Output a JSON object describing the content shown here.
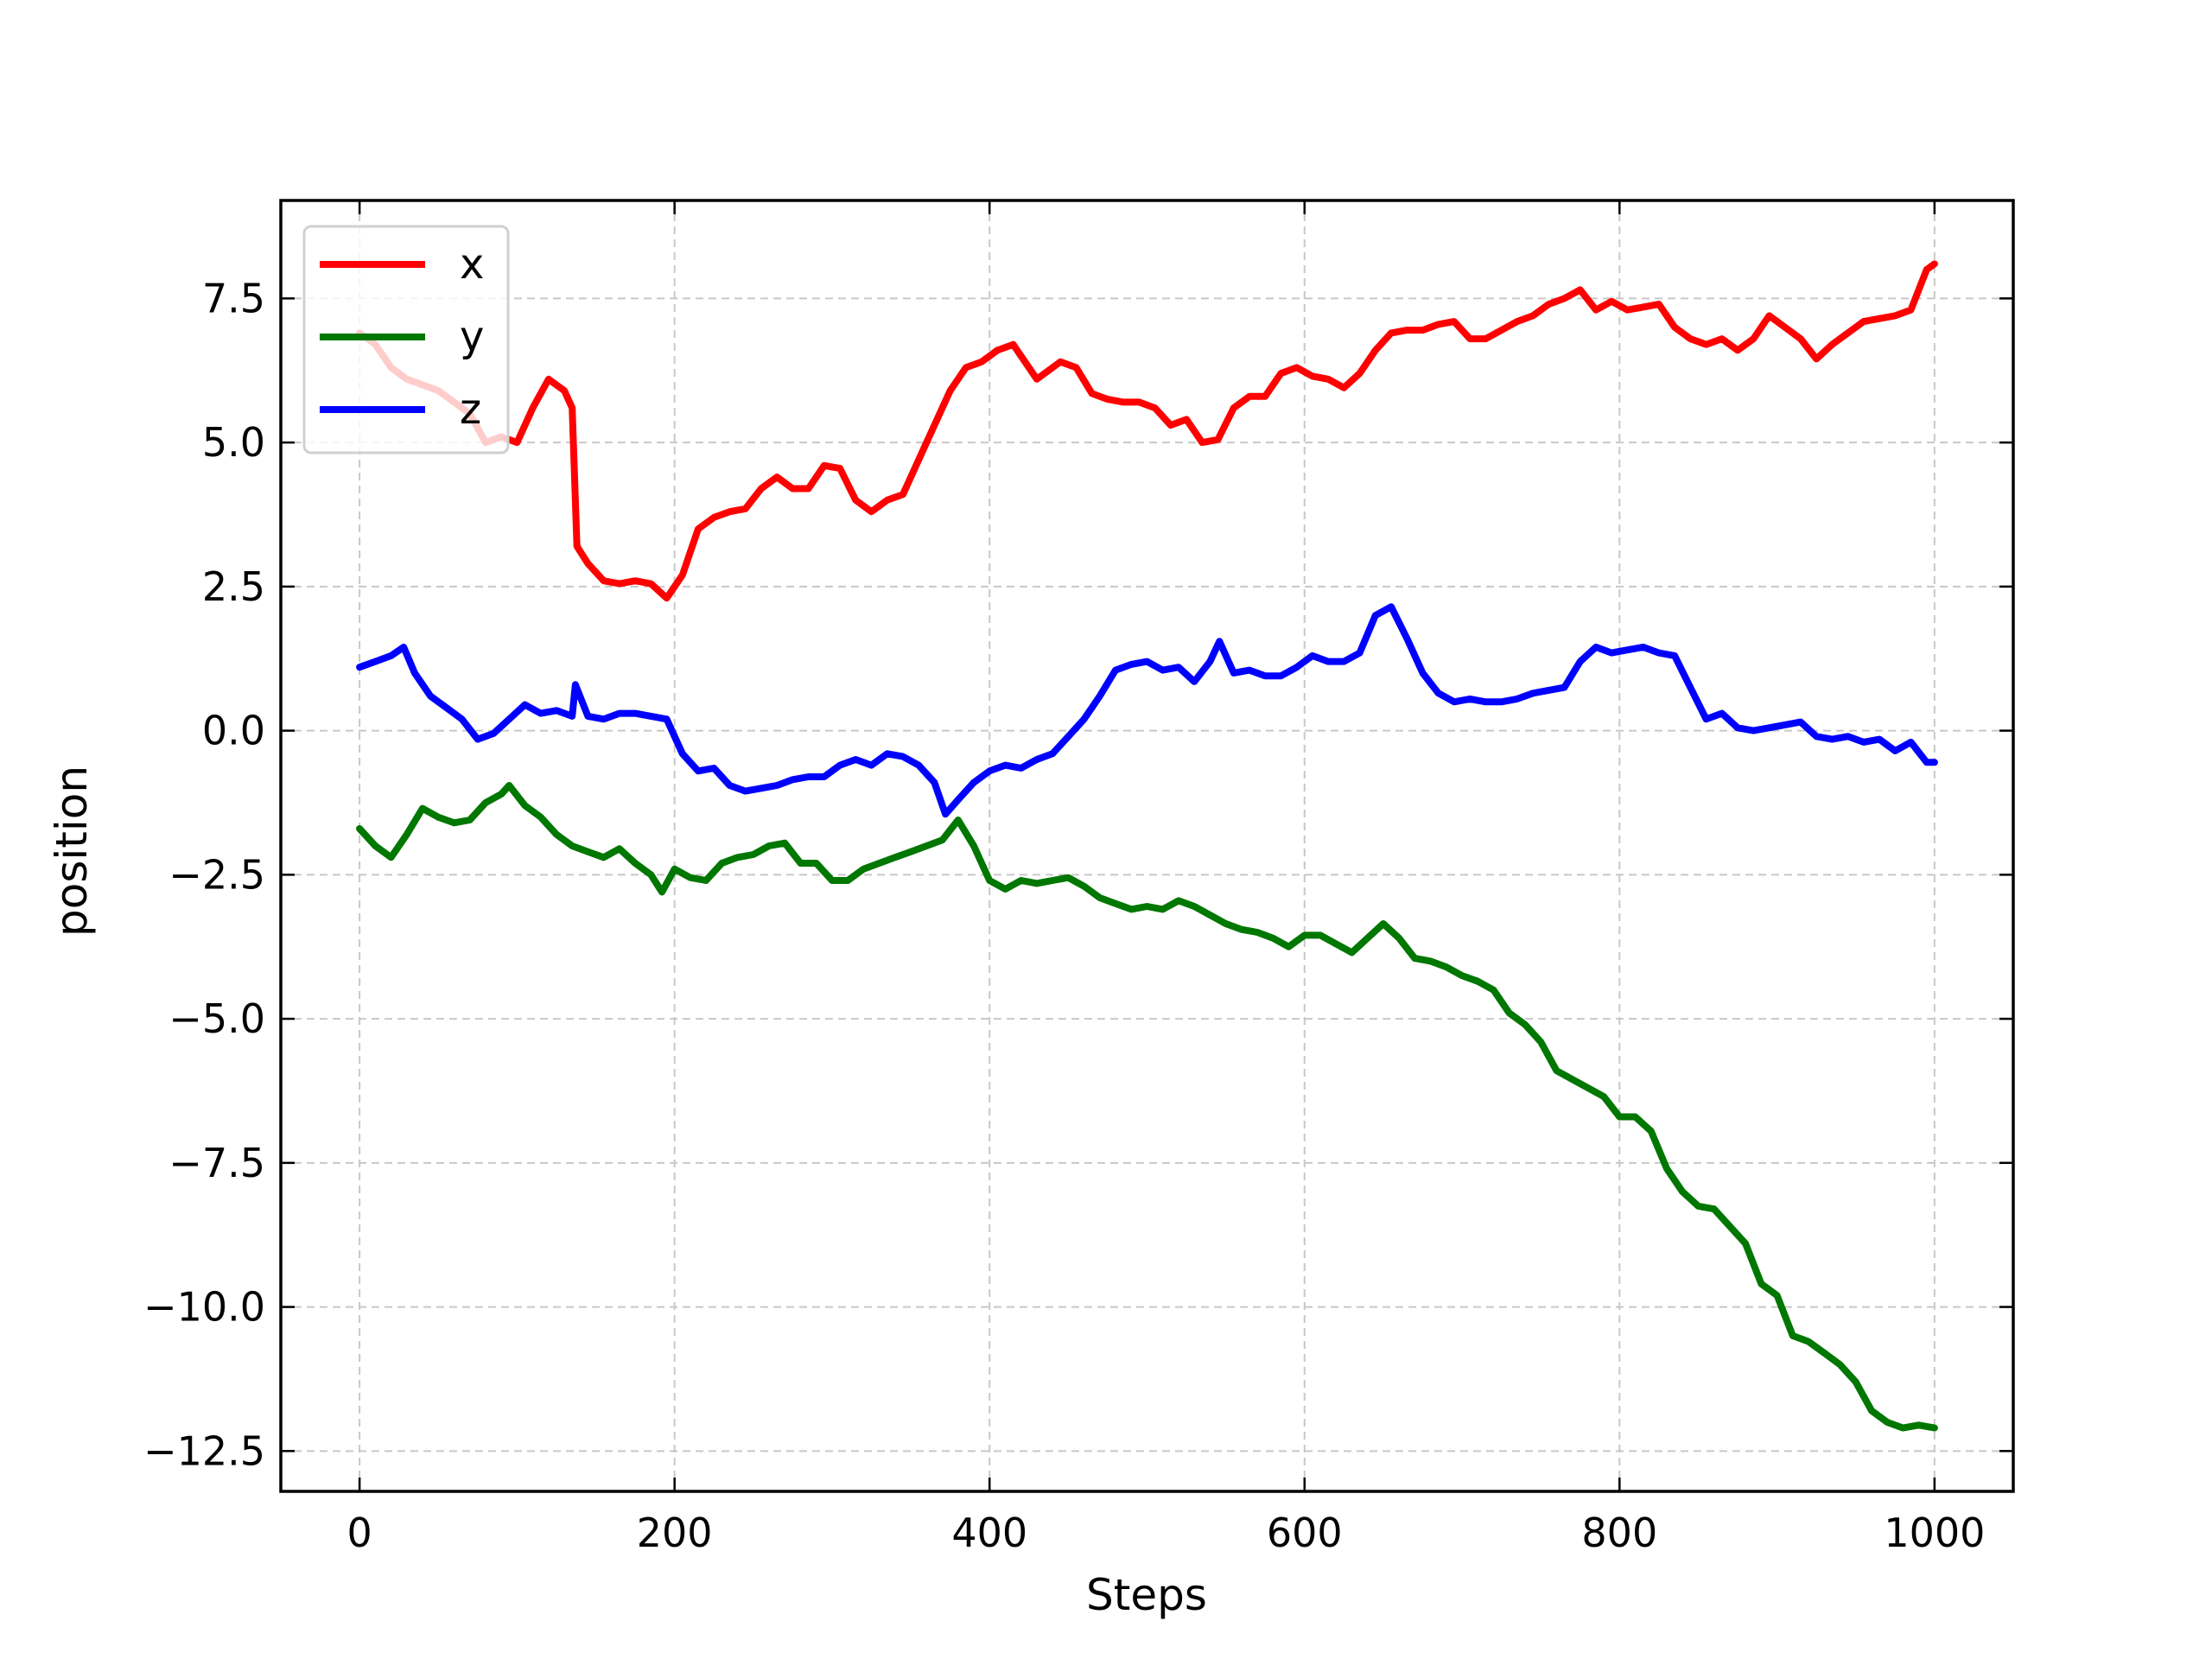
{
  "chart_data": {
    "type": "line",
    "title": "",
    "xlabel": "Steps",
    "ylabel": "position",
    "xlim": [
      -50,
      1050
    ],
    "ylim": [
      -13.2,
      9.2
    ],
    "xticks": [
      0,
      200,
      400,
      600,
      800,
      1000
    ],
    "yticks": [
      7.5,
      5.0,
      2.5,
      0.0,
      -2.5,
      -5.0,
      -7.5,
      -10.0,
      -12.5
    ],
    "xtick_labels": [
      "0",
      "200",
      "400",
      "600",
      "800",
      "1000"
    ],
    "ytick_labels": [
      "7.5",
      "5.0",
      "2.5",
      "0.0",
      "−2.5",
      "−5.0",
      "−7.5",
      "−10.0",
      "−12.5"
    ],
    "grid": true,
    "legend_position": "top-left",
    "series": [
      {
        "name": "x",
        "color": "#ff0000",
        "points": [
          [
            0,
            6.9
          ],
          [
            10,
            6.7
          ],
          [
            20,
            6.3
          ],
          [
            30,
            6.1
          ],
          [
            40,
            6.0
          ],
          [
            50,
            5.9
          ],
          [
            60,
            5.7
          ],
          [
            70,
            5.5
          ],
          [
            80,
            5.0
          ],
          [
            90,
            5.1
          ],
          [
            100,
            5.0
          ],
          [
            110,
            5.6
          ],
          [
            120,
            6.1
          ],
          [
            130,
            5.9
          ],
          [
            135,
            5.6
          ],
          [
            138,
            3.2
          ],
          [
            145,
            2.9
          ],
          [
            155,
            2.6
          ],
          [
            165,
            2.55
          ],
          [
            175,
            2.6
          ],
          [
            185,
            2.55
          ],
          [
            195,
            2.3
          ],
          [
            205,
            2.7
          ],
          [
            215,
            3.5
          ],
          [
            225,
            3.7
          ],
          [
            235,
            3.8
          ],
          [
            245,
            3.85
          ],
          [
            255,
            4.2
          ],
          [
            265,
            4.4
          ],
          [
            275,
            4.2
          ],
          [
            285,
            4.2
          ],
          [
            295,
            4.6
          ],
          [
            305,
            4.55
          ],
          [
            315,
            4.0
          ],
          [
            325,
            3.8
          ],
          [
            335,
            4.0
          ],
          [
            345,
            4.1
          ],
          [
            355,
            4.7
          ],
          [
            365,
            5.3
          ],
          [
            375,
            5.9
          ],
          [
            385,
            6.3
          ],
          [
            395,
            6.4
          ],
          [
            405,
            6.6
          ],
          [
            415,
            6.7
          ],
          [
            430,
            6.1
          ],
          [
            445,
            6.4
          ],
          [
            455,
            6.3
          ],
          [
            465,
            5.85
          ],
          [
            475,
            5.75
          ],
          [
            485,
            5.7
          ],
          [
            495,
            5.7
          ],
          [
            505,
            5.6
          ],
          [
            515,
            5.3
          ],
          [
            525,
            5.4
          ],
          [
            535,
            5.0
          ],
          [
            545,
            5.05
          ],
          [
            555,
            5.6
          ],
          [
            565,
            5.8
          ],
          [
            575,
            5.8
          ],
          [
            585,
            6.2
          ],
          [
            595,
            6.3
          ],
          [
            605,
            6.15
          ],
          [
            615,
            6.1
          ],
          [
            625,
            5.95
          ],
          [
            635,
            6.2
          ],
          [
            645,
            6.6
          ],
          [
            655,
            6.9
          ],
          [
            665,
            6.95
          ],
          [
            675,
            6.95
          ],
          [
            685,
            7.05
          ],
          [
            695,
            7.1
          ],
          [
            705,
            6.8
          ],
          [
            715,
            6.8
          ],
          [
            725,
            6.95
          ],
          [
            735,
            7.1
          ],
          [
            745,
            7.2
          ],
          [
            755,
            7.4
          ],
          [
            765,
            7.5
          ],
          [
            775,
            7.65
          ],
          [
            785,
            7.3
          ],
          [
            795,
            7.45
          ],
          [
            805,
            7.3
          ],
          [
            815,
            7.35
          ],
          [
            825,
            7.4
          ],
          [
            835,
            7.0
          ],
          [
            845,
            6.8
          ],
          [
            855,
            6.7
          ],
          [
            865,
            6.8
          ],
          [
            875,
            6.6
          ],
          [
            885,
            6.8
          ],
          [
            895,
            7.2
          ],
          [
            905,
            7.0
          ],
          [
            915,
            6.8
          ],
          [
            925,
            6.45
          ],
          [
            935,
            6.7
          ],
          [
            945,
            6.9
          ],
          [
            955,
            7.1
          ],
          [
            965,
            7.15
          ],
          [
            975,
            7.2
          ],
          [
            985,
            7.3
          ],
          [
            995,
            8.0
          ],
          [
            1000,
            8.1
          ]
        ]
      },
      {
        "name": "y",
        "color": "#007700",
        "points": [
          [
            0,
            -1.7
          ],
          [
            10,
            -2.0
          ],
          [
            20,
            -2.2
          ],
          [
            30,
            -1.8
          ],
          [
            40,
            -1.35
          ],
          [
            50,
            -1.5
          ],
          [
            60,
            -1.6
          ],
          [
            70,
            -1.55
          ],
          [
            80,
            -1.25
          ],
          [
            90,
            -1.1
          ],
          [
            95,
            -0.95
          ],
          [
            105,
            -1.3
          ],
          [
            115,
            -1.5
          ],
          [
            125,
            -1.8
          ],
          [
            135,
            -2.0
          ],
          [
            145,
            -2.1
          ],
          [
            155,
            -2.2
          ],
          [
            165,
            -2.05
          ],
          [
            175,
            -2.3
          ],
          [
            185,
            -2.5
          ],
          [
            192,
            -2.8
          ],
          [
            200,
            -2.4
          ],
          [
            210,
            -2.55
          ],
          [
            220,
            -2.6
          ],
          [
            230,
            -2.3
          ],
          [
            240,
            -2.2
          ],
          [
            250,
            -2.15
          ],
          [
            260,
            -2.0
          ],
          [
            270,
            -1.95
          ],
          [
            280,
            -2.3
          ],
          [
            290,
            -2.3
          ],
          [
            300,
            -2.6
          ],
          [
            310,
            -2.6
          ],
          [
            320,
            -2.4
          ],
          [
            330,
            -2.3
          ],
          [
            340,
            -2.2
          ],
          [
            350,
            -2.1
          ],
          [
            360,
            -2.0
          ],
          [
            370,
            -1.9
          ],
          [
            380,
            -1.55
          ],
          [
            390,
            -2.0
          ],
          [
            400,
            -2.6
          ],
          [
            410,
            -2.75
          ],
          [
            420,
            -2.6
          ],
          [
            430,
            -2.65
          ],
          [
            440,
            -2.6
          ],
          [
            450,
            -2.55
          ],
          [
            460,
            -2.7
          ],
          [
            470,
            -2.9
          ],
          [
            480,
            -3.0
          ],
          [
            490,
            -3.1
          ],
          [
            500,
            -3.05
          ],
          [
            510,
            -3.1
          ],
          [
            520,
            -2.95
          ],
          [
            530,
            -3.05
          ],
          [
            540,
            -3.2
          ],
          [
            550,
            -3.35
          ],
          [
            560,
            -3.45
          ],
          [
            570,
            -3.5
          ],
          [
            580,
            -3.6
          ],
          [
            590,
            -3.75
          ],
          [
            600,
            -3.55
          ],
          [
            610,
            -3.55
          ],
          [
            620,
            -3.7
          ],
          [
            630,
            -3.85
          ],
          [
            640,
            -3.6
          ],
          [
            650,
            -3.35
          ],
          [
            660,
            -3.6
          ],
          [
            670,
            -3.95
          ],
          [
            680,
            -4.0
          ],
          [
            690,
            -4.1
          ],
          [
            700,
            -4.25
          ],
          [
            710,
            -4.35
          ],
          [
            720,
            -4.5
          ],
          [
            730,
            -4.9
          ],
          [
            740,
            -5.1
          ],
          [
            750,
            -5.4
          ],
          [
            760,
            -5.9
          ],
          [
            770,
            -6.05
          ],
          [
            780,
            -6.2
          ],
          [
            790,
            -6.35
          ],
          [
            800,
            -6.7
          ],
          [
            810,
            -6.7
          ],
          [
            820,
            -6.95
          ],
          [
            830,
            -7.6
          ],
          [
            840,
            -8.0
          ],
          [
            850,
            -8.25
          ],
          [
            860,
            -8.3
          ],
          [
            870,
            -8.6
          ],
          [
            880,
            -8.9
          ],
          [
            890,
            -9.6
          ],
          [
            900,
            -9.8
          ],
          [
            910,
            -10.5
          ],
          [
            920,
            -10.6
          ],
          [
            930,
            -10.8
          ],
          [
            940,
            -11.0
          ],
          [
            950,
            -11.3
          ],
          [
            960,
            -11.8
          ],
          [
            970,
            -12.0
          ],
          [
            980,
            -12.1
          ],
          [
            990,
            -12.05
          ],
          [
            1000,
            -12.1
          ]
        ]
      },
      {
        "name": "z",
        "color": "#0000ff",
        "points": [
          [
            0,
            1.1
          ],
          [
            10,
            1.2
          ],
          [
            20,
            1.3
          ],
          [
            28,
            1.45
          ],
          [
            35,
            1.0
          ],
          [
            45,
            0.6
          ],
          [
            55,
            0.4
          ],
          [
            65,
            0.2
          ],
          [
            75,
            -0.15
          ],
          [
            85,
            -0.05
          ],
          [
            95,
            0.2
          ],
          [
            105,
            0.45
          ],
          [
            115,
            0.3
          ],
          [
            125,
            0.35
          ],
          [
            135,
            0.25
          ],
          [
            137,
            0.8
          ],
          [
            145,
            0.25
          ],
          [
            155,
            0.2
          ],
          [
            165,
            0.3
          ],
          [
            175,
            0.3
          ],
          [
            185,
            0.25
          ],
          [
            195,
            0.2
          ],
          [
            205,
            -0.4
          ],
          [
            215,
            -0.7
          ],
          [
            225,
            -0.65
          ],
          [
            235,
            -0.95
          ],
          [
            245,
            -1.05
          ],
          [
            255,
            -1.0
          ],
          [
            265,
            -0.95
          ],
          [
            275,
            -0.85
          ],
          [
            285,
            -0.8
          ],
          [
            295,
            -0.8
          ],
          [
            305,
            -0.6
          ],
          [
            315,
            -0.5
          ],
          [
            325,
            -0.6
          ],
          [
            335,
            -0.4
          ],
          [
            345,
            -0.45
          ],
          [
            355,
            -0.6
          ],
          [
            365,
            -0.9
          ],
          [
            372,
            -1.45
          ],
          [
            380,
            -1.2
          ],
          [
            390,
            -0.9
          ],
          [
            400,
            -0.7
          ],
          [
            410,
            -0.6
          ],
          [
            420,
            -0.65
          ],
          [
            430,
            -0.5
          ],
          [
            440,
            -0.4
          ],
          [
            450,
            -0.1
          ],
          [
            460,
            0.2
          ],
          [
            470,
            0.6
          ],
          [
            480,
            1.05
          ],
          [
            490,
            1.15
          ],
          [
            500,
            1.2
          ],
          [
            510,
            1.05
          ],
          [
            520,
            1.1
          ],
          [
            530,
            0.85
          ],
          [
            540,
            1.2
          ],
          [
            546,
            1.55
          ],
          [
            555,
            1.0
          ],
          [
            565,
            1.05
          ],
          [
            575,
            0.95
          ],
          [
            585,
            0.95
          ],
          [
            595,
            1.1
          ],
          [
            605,
            1.3
          ],
          [
            615,
            1.2
          ],
          [
            625,
            1.2
          ],
          [
            635,
            1.35
          ],
          [
            645,
            2.0
          ],
          [
            655,
            2.15
          ],
          [
            665,
            1.6
          ],
          [
            675,
            1.0
          ],
          [
            685,
            0.65
          ],
          [
            695,
            0.5
          ],
          [
            705,
            0.55
          ],
          [
            715,
            0.5
          ],
          [
            725,
            0.5
          ],
          [
            735,
            0.55
          ],
          [
            745,
            0.65
          ],
          [
            755,
            0.7
          ],
          [
            765,
            0.75
          ],
          [
            775,
            1.2
          ],
          [
            785,
            1.45
          ],
          [
            795,
            1.35
          ],
          [
            805,
            1.4
          ],
          [
            815,
            1.45
          ],
          [
            825,
            1.35
          ],
          [
            835,
            1.3
          ],
          [
            845,
            0.75
          ],
          [
            855,
            0.2
          ],
          [
            865,
            0.3
          ],
          [
            875,
            0.05
          ],
          [
            885,
            0.0
          ],
          [
            895,
            0.05
          ],
          [
            905,
            0.1
          ],
          [
            915,
            0.15
          ],
          [
            925,
            -0.1
          ],
          [
            935,
            -0.15
          ],
          [
            945,
            -0.1
          ],
          [
            955,
            -0.2
          ],
          [
            965,
            -0.15
          ],
          [
            975,
            -0.35
          ],
          [
            985,
            -0.2
          ],
          [
            995,
            -0.55
          ],
          [
            1000,
            -0.55
          ]
        ]
      }
    ]
  }
}
